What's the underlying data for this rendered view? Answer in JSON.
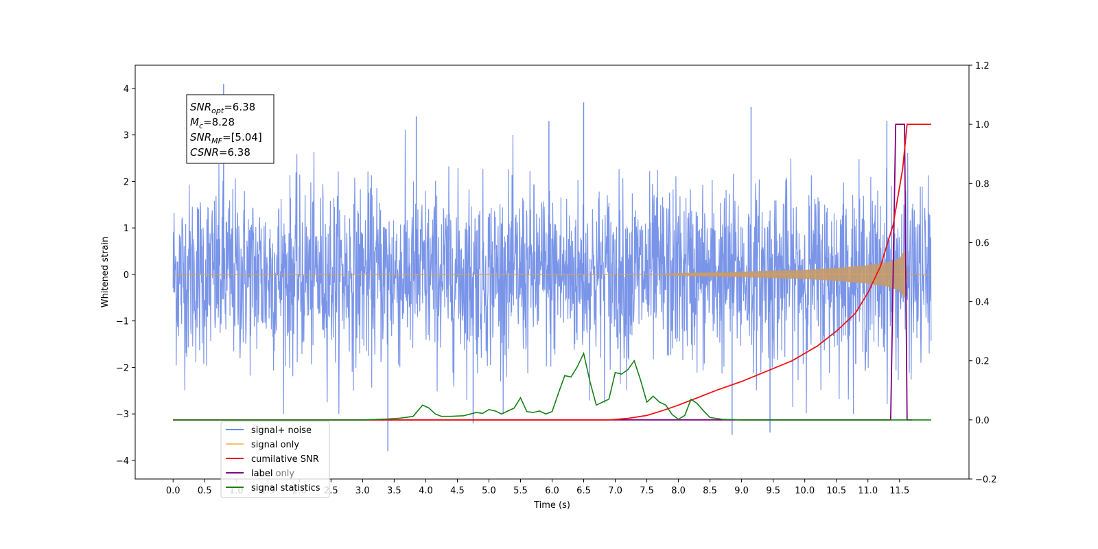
{
  "chart_data": {
    "type": "line",
    "xlabel": "Time (s)",
    "ylabel_left": "Whitened strain",
    "ylabel_right": "",
    "x_ticks": [
      "0.0",
      "0.5",
      "1.0",
      "1.5",
      "2.0",
      "2.5",
      "3.0",
      "3.5",
      "4.0",
      "4.5",
      "5.0",
      "5.5",
      "6.0",
      "6.5",
      "7.0",
      "7.5",
      "8.0",
      "8.5",
      "9.0",
      "9.5",
      "10.0",
      "10.5",
      "11.0",
      "11.5"
    ],
    "y_left_ticks": [
      "−4",
      "−3",
      "−2",
      "−1",
      "0",
      "1",
      "2",
      "3",
      "4"
    ],
    "y_right_ticks": [
      "−0.2",
      "0.0",
      "0.2",
      "0.4",
      "0.6",
      "0.8",
      "1.0",
      "1.2"
    ],
    "xlim": [
      -0.6,
      12.6
    ],
    "ylim_left": [
      -4.4,
      4.5
    ],
    "ylim_right": [
      -0.2,
      1.2
    ],
    "grid": false,
    "legend_position": "lower-left",
    "colors": {
      "signal_noise": "#6b8ae6",
      "signal_only": "#f5c36b",
      "cumulative_snr": "#ee1111",
      "label": "#800080",
      "signal_statistics": "#138013"
    },
    "annotation": {
      "lines": [
        {
          "sym": "SNR",
          "sub": "opt",
          "val": "=6.38"
        },
        {
          "sym": "M",
          "sub": "c",
          "val": "=8.28"
        },
        {
          "sym": "SNR",
          "sub": "MF",
          "val": "=[5.04]"
        },
        {
          "sym": "CSNR",
          "sub": "",
          "val": "=6.38"
        }
      ]
    },
    "series": [
      {
        "name": "signal+ noise",
        "axis": "left",
        "description_noise_range": [
          -2.0,
          2.0
        ],
        "x_range": [
          0.0,
          12.0
        ]
      },
      {
        "name": "signal only",
        "axis": "left",
        "x": [
          0.0,
          7.5,
          8.0,
          9.0,
          10.0,
          10.5,
          11.0,
          11.3,
          11.5,
          11.6,
          11.62,
          12.0
        ],
        "envelope": [
          0.0,
          0.0,
          0.03,
          0.06,
          0.1,
          0.14,
          0.2,
          0.26,
          0.35,
          0.55,
          0.0,
          0.0
        ]
      },
      {
        "name": "cumilative SNR",
        "axis": "right",
        "x": [
          0.0,
          6.9,
          7.2,
          7.5,
          7.8,
          8.0,
          8.3,
          8.6,
          9.0,
          9.4,
          9.8,
          10.2,
          10.5,
          10.8,
          11.0,
          11.2,
          11.4,
          11.55,
          11.62,
          12.0
        ],
        "values": [
          0.0,
          0.0,
          0.005,
          0.015,
          0.035,
          0.05,
          0.075,
          0.1,
          0.13,
          0.165,
          0.2,
          0.25,
          0.3,
          0.36,
          0.43,
          0.52,
          0.66,
          0.85,
          1.0,
          1.0
        ]
      },
      {
        "name": "label",
        "axis": "right",
        "x": [
          0.0,
          11.36,
          11.44,
          11.58,
          11.62,
          11.7
        ],
        "values": [
          0.0,
          0.0,
          1.0,
          1.0,
          0.0,
          0.0
        ]
      },
      {
        "name": "signal statistics",
        "axis": "right",
        "x": [
          0.0,
          3.0,
          3.4,
          3.6,
          3.8,
          3.95,
          4.05,
          4.15,
          4.25,
          4.4,
          4.6,
          4.8,
          4.9,
          5.0,
          5.1,
          5.2,
          5.3,
          5.4,
          5.5,
          5.6,
          5.7,
          5.8,
          5.9,
          6.0,
          6.1,
          6.2,
          6.3,
          6.4,
          6.5,
          6.6,
          6.7,
          6.8,
          6.9,
          7.0,
          7.1,
          7.2,
          7.3,
          7.4,
          7.5,
          7.6,
          7.7,
          7.8,
          7.9,
          8.0,
          8.1,
          8.2,
          8.3,
          8.4,
          8.5,
          8.7,
          9.0,
          12.0
        ],
        "values": [
          0.0,
          0.0,
          0.003,
          0.006,
          0.012,
          0.05,
          0.04,
          0.02,
          0.012,
          0.012,
          0.014,
          0.025,
          0.022,
          0.035,
          0.03,
          0.02,
          0.03,
          0.04,
          0.075,
          0.028,
          0.025,
          0.03,
          0.02,
          0.028,
          0.09,
          0.15,
          0.145,
          0.18,
          0.225,
          0.13,
          0.05,
          0.06,
          0.07,
          0.16,
          0.155,
          0.17,
          0.2,
          0.135,
          0.06,
          0.08,
          0.06,
          0.05,
          0.018,
          0.002,
          0.015,
          0.07,
          0.055,
          0.03,
          0.008,
          0.002,
          0.0,
          0.0
        ]
      }
    ],
    "legend_overlay_text": "label only"
  }
}
